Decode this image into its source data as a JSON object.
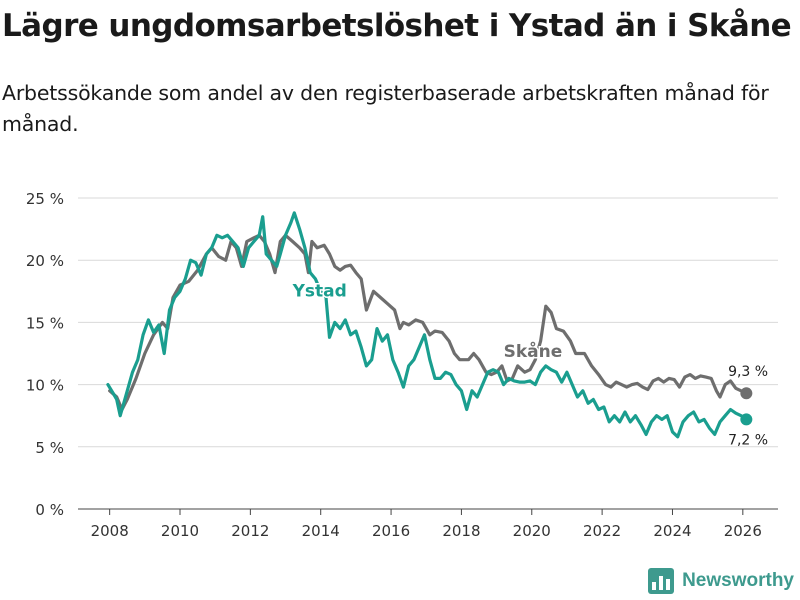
{
  "title": "Lägre ungdomsarbetslöshet i Ystad än i Skåne",
  "subtitle": "Arbetssökande som andel av den registerbaserade arbetskraften månad för månad.",
  "brand": "Newsworthy",
  "chart_data": {
    "type": "line",
    "xlim": [
      2007.1,
      2027.0
    ],
    "ylim": [
      0,
      25
    ],
    "x_ticks": [
      2008,
      2010,
      2012,
      2014,
      2016,
      2018,
      2020,
      2022,
      2024,
      2026
    ],
    "x_tick_labels": [
      "2008",
      "2010",
      "2012",
      "2014",
      "2016",
      "2018",
      "2020",
      "2022",
      "2024",
      "2026"
    ],
    "y_ticks": [
      0,
      5,
      10,
      15,
      20,
      25
    ],
    "y_tick_labels": [
      "0 %",
      "5 %",
      "10 %",
      "15 %",
      "20 %",
      "25 %"
    ],
    "grid": true,
    "series": [
      {
        "name": "Skåne",
        "label": "Skåne",
        "color": "#6e6e6e",
        "end_label": "9,3 %",
        "points": [
          [
            2008.0,
            9.5
          ],
          [
            2008.2,
            9.0
          ],
          [
            2008.35,
            8.0
          ],
          [
            2008.5,
            8.8
          ],
          [
            2008.75,
            10.5
          ],
          [
            2009.0,
            12.5
          ],
          [
            2009.25,
            14.0
          ],
          [
            2009.5,
            15.0
          ],
          [
            2009.65,
            14.5
          ],
          [
            2009.8,
            17.0
          ],
          [
            2010.0,
            18.0
          ],
          [
            2010.25,
            18.3
          ],
          [
            2010.5,
            19.2
          ],
          [
            2010.75,
            20.5
          ],
          [
            2010.9,
            21.0
          ],
          [
            2011.1,
            20.3
          ],
          [
            2011.3,
            20.0
          ],
          [
            2011.45,
            21.5
          ],
          [
            2011.6,
            21.0
          ],
          [
            2011.75,
            19.5
          ],
          [
            2011.9,
            21.5
          ],
          [
            2012.1,
            21.8
          ],
          [
            2012.25,
            22.0
          ],
          [
            2012.4,
            21.5
          ],
          [
            2012.55,
            20.5
          ],
          [
            2012.7,
            19.0
          ],
          [
            2012.85,
            21.5
          ],
          [
            2013.0,
            22.0
          ],
          [
            2013.2,
            21.5
          ],
          [
            2013.4,
            21.0
          ],
          [
            2013.55,
            20.5
          ],
          [
            2013.65,
            19.0
          ],
          [
            2013.75,
            21.5
          ],
          [
            2013.9,
            21.0
          ],
          [
            2014.1,
            21.2
          ],
          [
            2014.25,
            20.5
          ],
          [
            2014.4,
            19.5
          ],
          [
            2014.55,
            19.2
          ],
          [
            2014.7,
            19.5
          ],
          [
            2014.85,
            19.6
          ],
          [
            2015.0,
            19.0
          ],
          [
            2015.15,
            18.5
          ],
          [
            2015.3,
            16.0
          ],
          [
            2015.5,
            17.5
          ],
          [
            2015.7,
            17.0
          ],
          [
            2015.9,
            16.5
          ],
          [
            2016.1,
            16.0
          ],
          [
            2016.25,
            14.5
          ],
          [
            2016.35,
            15.0
          ],
          [
            2016.5,
            14.8
          ],
          [
            2016.7,
            15.2
          ],
          [
            2016.9,
            15.0
          ],
          [
            2017.1,
            14.0
          ],
          [
            2017.25,
            14.3
          ],
          [
            2017.45,
            14.2
          ],
          [
            2017.65,
            13.5
          ],
          [
            2017.8,
            12.5
          ],
          [
            2017.95,
            12.0
          ],
          [
            2018.2,
            12.0
          ],
          [
            2018.35,
            12.5
          ],
          [
            2018.5,
            12.0
          ],
          [
            2018.7,
            11.0
          ],
          [
            2018.85,
            10.8
          ],
          [
            2019.0,
            11.0
          ],
          [
            2019.15,
            11.5
          ],
          [
            2019.3,
            10.3
          ],
          [
            2019.45,
            10.5
          ],
          [
            2019.6,
            11.5
          ],
          [
            2019.8,
            11.0
          ],
          [
            2019.95,
            11.2
          ],
          [
            2020.1,
            12.0
          ],
          [
            2020.25,
            13.5
          ],
          [
            2020.4,
            16.3
          ],
          [
            2020.55,
            15.8
          ],
          [
            2020.7,
            14.5
          ],
          [
            2020.9,
            14.3
          ],
          [
            2021.1,
            13.5
          ],
          [
            2021.25,
            12.5
          ],
          [
            2021.35,
            12.5
          ],
          [
            2021.5,
            12.5
          ],
          [
            2021.7,
            11.5
          ],
          [
            2021.9,
            10.8
          ],
          [
            2022.1,
            10.0
          ],
          [
            2022.25,
            9.8
          ],
          [
            2022.4,
            10.2
          ],
          [
            2022.55,
            10.0
          ],
          [
            2022.7,
            9.8
          ],
          [
            2022.85,
            10.0
          ],
          [
            2023.0,
            10.1
          ],
          [
            2023.15,
            9.8
          ],
          [
            2023.3,
            9.6
          ],
          [
            2023.45,
            10.3
          ],
          [
            2023.6,
            10.5
          ],
          [
            2023.75,
            10.2
          ],
          [
            2023.9,
            10.5
          ],
          [
            2024.05,
            10.4
          ],
          [
            2024.2,
            9.8
          ],
          [
            2024.35,
            10.6
          ],
          [
            2024.5,
            10.8
          ],
          [
            2024.65,
            10.5
          ],
          [
            2024.8,
            10.7
          ],
          [
            2024.95,
            10.6
          ],
          [
            2025.1,
            10.5
          ],
          [
            2025.25,
            9.5
          ],
          [
            2025.35,
            9.0
          ],
          [
            2025.5,
            10.0
          ],
          [
            2025.65,
            10.3
          ],
          [
            2025.8,
            9.7
          ],
          [
            2025.95,
            9.5
          ],
          [
            2026.1,
            9.3
          ]
        ]
      },
      {
        "name": "Ystad",
        "label": "Ystad",
        "color": "#1a9e8f",
        "end_label": "7,2 %",
        "points": [
          [
            2007.95,
            10.0
          ],
          [
            2008.1,
            9.3
          ],
          [
            2008.2,
            8.8
          ],
          [
            2008.3,
            7.5
          ],
          [
            2008.45,
            9.0
          ],
          [
            2008.65,
            11.0
          ],
          [
            2008.8,
            12.0
          ],
          [
            2008.95,
            14.0
          ],
          [
            2009.1,
            15.2
          ],
          [
            2009.25,
            14.2
          ],
          [
            2009.4,
            14.8
          ],
          [
            2009.55,
            12.5
          ],
          [
            2009.7,
            16.0
          ],
          [
            2009.85,
            17.0
          ],
          [
            2010.0,
            17.5
          ],
          [
            2010.15,
            18.5
          ],
          [
            2010.3,
            20.0
          ],
          [
            2010.45,
            19.8
          ],
          [
            2010.6,
            18.8
          ],
          [
            2010.75,
            20.5
          ],
          [
            2010.9,
            21.0
          ],
          [
            2011.05,
            22.0
          ],
          [
            2011.2,
            21.8
          ],
          [
            2011.35,
            22.0
          ],
          [
            2011.5,
            21.5
          ],
          [
            2011.65,
            21.0
          ],
          [
            2011.8,
            19.5
          ],
          [
            2011.95,
            21.0
          ],
          [
            2012.1,
            21.5
          ],
          [
            2012.25,
            22.0
          ],
          [
            2012.35,
            23.5
          ],
          [
            2012.45,
            20.5
          ],
          [
            2012.6,
            20.0
          ],
          [
            2012.75,
            19.5
          ],
          [
            2012.85,
            20.5
          ],
          [
            2013.0,
            22.0
          ],
          [
            2013.15,
            23.0
          ],
          [
            2013.25,
            23.8
          ],
          [
            2013.4,
            22.5
          ],
          [
            2013.55,
            21.0
          ],
          [
            2013.7,
            19.0
          ],
          [
            2013.85,
            18.5
          ],
          [
            2014.0,
            17.5
          ],
          [
            2014.15,
            17.0
          ],
          [
            2014.25,
            13.8
          ],
          [
            2014.4,
            15.0
          ],
          [
            2014.55,
            14.5
          ],
          [
            2014.7,
            15.2
          ],
          [
            2014.85,
            14.0
          ],
          [
            2015.0,
            14.3
          ],
          [
            2015.15,
            13.0
          ],
          [
            2015.3,
            11.5
          ],
          [
            2015.45,
            12.0
          ],
          [
            2015.6,
            14.5
          ],
          [
            2015.75,
            13.5
          ],
          [
            2015.9,
            14.0
          ],
          [
            2016.05,
            12.0
          ],
          [
            2016.2,
            11.0
          ],
          [
            2016.35,
            9.8
          ],
          [
            2016.5,
            11.5
          ],
          [
            2016.65,
            12.0
          ],
          [
            2016.8,
            13.0
          ],
          [
            2016.95,
            14.0
          ],
          [
            2017.1,
            12.0
          ],
          [
            2017.25,
            10.5
          ],
          [
            2017.4,
            10.5
          ],
          [
            2017.55,
            11.0
          ],
          [
            2017.7,
            10.8
          ],
          [
            2017.85,
            10.0
          ],
          [
            2018.0,
            9.5
          ],
          [
            2018.15,
            8.0
          ],
          [
            2018.3,
            9.5
          ],
          [
            2018.45,
            9.0
          ],
          [
            2018.6,
            10.0
          ],
          [
            2018.75,
            11.0
          ],
          [
            2018.9,
            11.2
          ],
          [
            2019.05,
            11.0
          ],
          [
            2019.2,
            10.0
          ],
          [
            2019.35,
            10.5
          ],
          [
            2019.5,
            10.3
          ],
          [
            2019.65,
            10.2
          ],
          [
            2019.8,
            10.2
          ],
          [
            2019.95,
            10.3
          ],
          [
            2020.1,
            10.0
          ],
          [
            2020.25,
            11.0
          ],
          [
            2020.4,
            11.5
          ],
          [
            2020.55,
            11.2
          ],
          [
            2020.7,
            11.0
          ],
          [
            2020.85,
            10.2
          ],
          [
            2021.0,
            11.0
          ],
          [
            2021.15,
            10.0
          ],
          [
            2021.3,
            9.0
          ],
          [
            2021.45,
            9.5
          ],
          [
            2021.6,
            8.5
          ],
          [
            2021.75,
            8.8
          ],
          [
            2021.9,
            8.0
          ],
          [
            2022.05,
            8.2
          ],
          [
            2022.2,
            7.0
          ],
          [
            2022.35,
            7.5
          ],
          [
            2022.5,
            7.0
          ],
          [
            2022.65,
            7.8
          ],
          [
            2022.8,
            7.0
          ],
          [
            2022.95,
            7.5
          ],
          [
            2023.1,
            6.8
          ],
          [
            2023.25,
            6.0
          ],
          [
            2023.4,
            7.0
          ],
          [
            2023.55,
            7.5
          ],
          [
            2023.7,
            7.2
          ],
          [
            2023.85,
            7.5
          ],
          [
            2024.0,
            6.2
          ],
          [
            2024.15,
            5.8
          ],
          [
            2024.3,
            7.0
          ],
          [
            2024.45,
            7.5
          ],
          [
            2024.6,
            7.8
          ],
          [
            2024.75,
            7.0
          ],
          [
            2024.9,
            7.2
          ],
          [
            2025.05,
            6.5
          ],
          [
            2025.2,
            6.0
          ],
          [
            2025.35,
            7.0
          ],
          [
            2025.5,
            7.5
          ],
          [
            2025.65,
            8.0
          ],
          [
            2025.8,
            7.7
          ],
          [
            2025.95,
            7.5
          ],
          [
            2026.1,
            7.2
          ]
        ]
      }
    ]
  }
}
